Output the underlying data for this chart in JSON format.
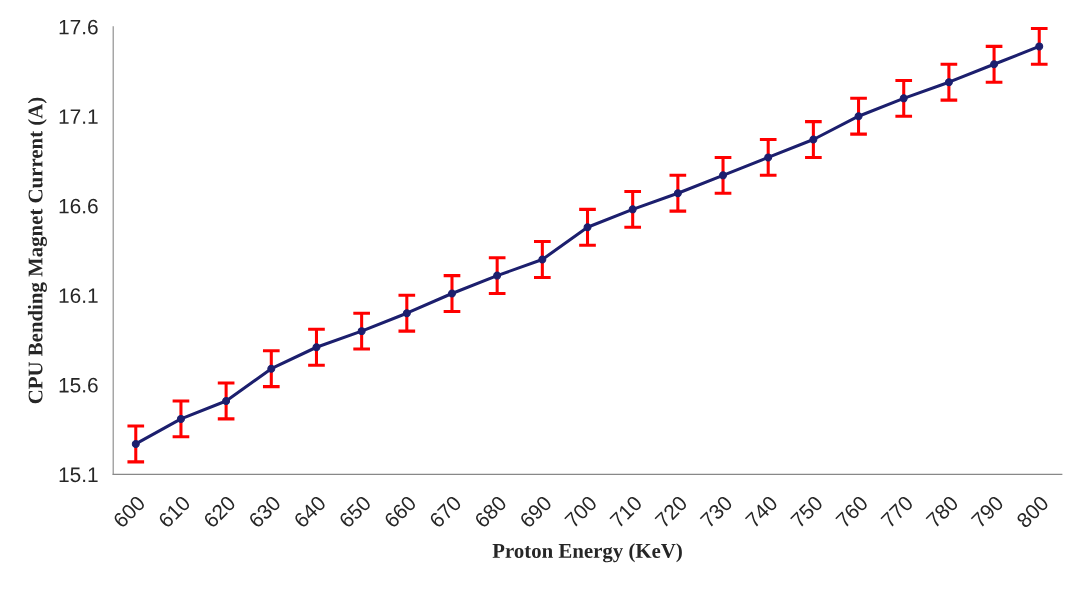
{
  "chart_data": {
    "type": "line",
    "xlabel": "Proton Energy (KeV)",
    "ylabel": "CPU Bending Magnet Current (A)",
    "categories": [
      "600",
      "610",
      "620",
      "630",
      "640",
      "650",
      "660",
      "670",
      "680",
      "690",
      "700",
      "710",
      "720",
      "730",
      "740",
      "750",
      "760",
      "770",
      "780",
      "790",
      "800"
    ],
    "series": [
      {
        "color": "#1c1f6e",
        "values": [
          15.27,
          15.41,
          15.51,
          15.69,
          15.81,
          15.9,
          16.0,
          16.11,
          16.21,
          16.3,
          16.48,
          16.58,
          16.67,
          16.77,
          16.87,
          16.97,
          17.1,
          17.2,
          17.29,
          17.39,
          17.49
        ],
        "errors": [
          0.1,
          0.1,
          0.1,
          0.1,
          0.1,
          0.1,
          0.1,
          0.1,
          0.1,
          0.1,
          0.1,
          0.1,
          0.1,
          0.1,
          0.1,
          0.1,
          0.1,
          0.1,
          0.1,
          0.1,
          0.1
        ]
      }
    ],
    "ylim": [
      15.1,
      17.6
    ],
    "yticks": [
      {
        "value": 15.1,
        "label": "15.1"
      },
      {
        "value": 15.6,
        "label": "15.6"
      },
      {
        "value": 16.1,
        "label": "16.1"
      },
      {
        "value": 16.6,
        "label": "16.6"
      },
      {
        "value": 17.1,
        "label": "17.1"
      },
      {
        "value": 17.6,
        "label": "17.6"
      }
    ],
    "grid": false,
    "legend": false,
    "marker": "circle",
    "line_style": "solid"
  }
}
